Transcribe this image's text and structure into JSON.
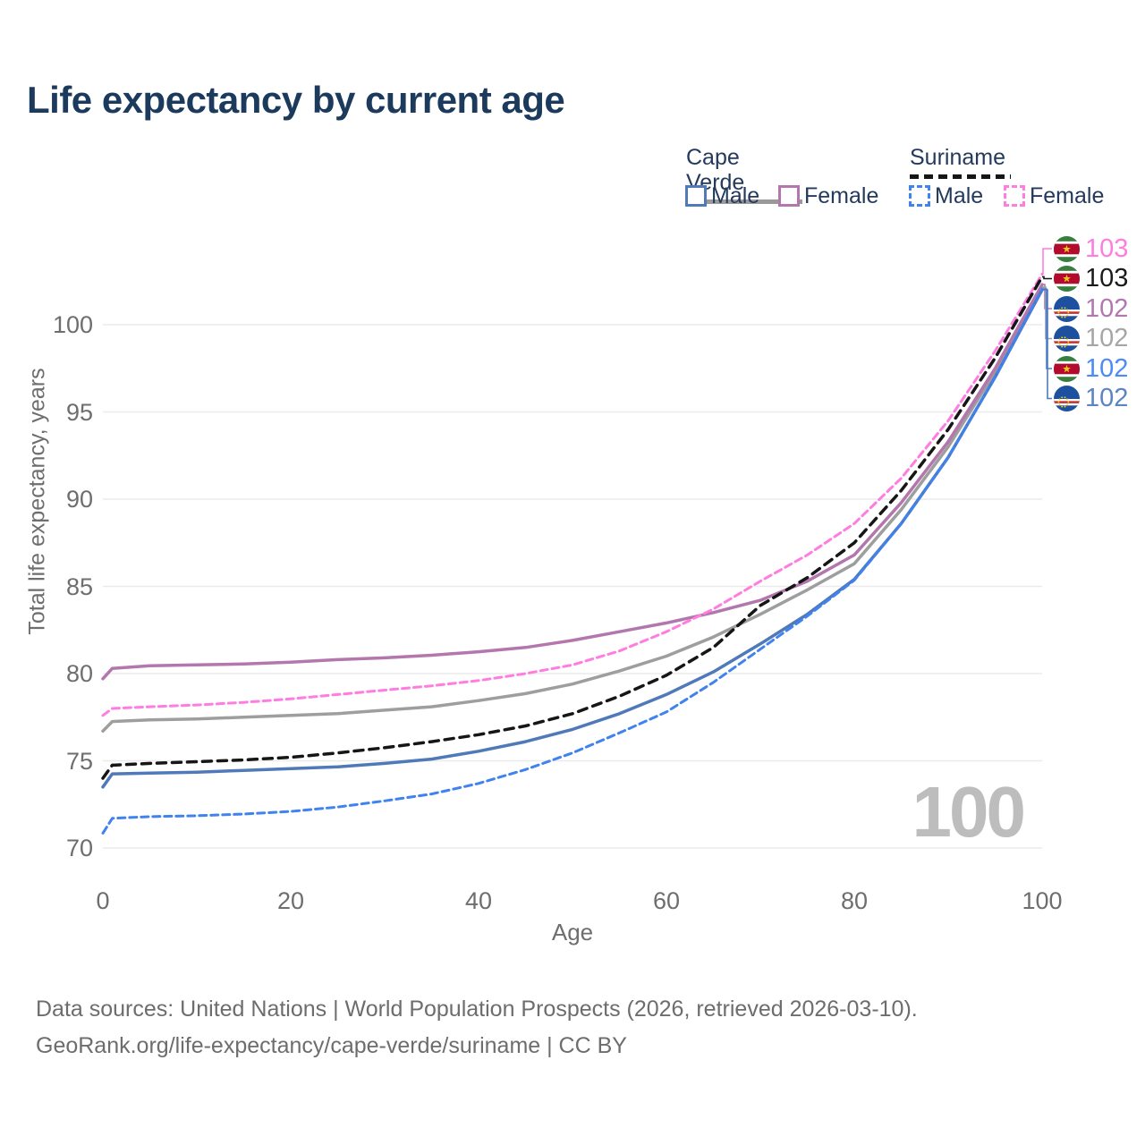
{
  "title": "Life expectancy by current age",
  "legend": {
    "groups": [
      {
        "country": "Cape Verde",
        "line_style": "solid",
        "underline_color": "#9a9a9a",
        "items": [
          {
            "label": "Male",
            "color": "#4f79b8",
            "dashed": false
          },
          {
            "label": "Female",
            "color": "#b377ae",
            "dashed": false
          }
        ]
      },
      {
        "country": "Suriname",
        "line_style": "dashed",
        "underline_color": "#161616",
        "items": [
          {
            "label": "Male",
            "color": "#3f82f0",
            "dashed": true
          },
          {
            "label": "Female",
            "color": "#ff7ce0",
            "dashed": true
          }
        ]
      }
    ]
  },
  "axes": {
    "x": {
      "title": "Age",
      "ticks": [
        0,
        20,
        40,
        60,
        80,
        100
      ],
      "range": [
        0,
        100
      ]
    },
    "y": {
      "title": "Total life expectancy, years",
      "ticks": [
        70,
        75,
        80,
        85,
        90,
        95,
        100
      ],
      "range": [
        70,
        100
      ]
    }
  },
  "watermark": "100",
  "end_labels": [
    {
      "value": "103",
      "flag": "suriname",
      "color": "#ff7ce0",
      "series": "suriname_female"
    },
    {
      "value": "103",
      "flag": "suriname",
      "color": "#1a1a1a",
      "series": "suriname_total"
    },
    {
      "value": "102",
      "flag": "cape-verde",
      "color": "#b377ae",
      "series": "cape_verde_female"
    },
    {
      "value": "102",
      "flag": "cape-verde",
      "color": "#a6a6a6",
      "series": "cape_verde_total"
    },
    {
      "value": "102",
      "flag": "suriname",
      "color": "#4d8af5",
      "series": "suriname_male"
    },
    {
      "value": "102",
      "flag": "cape-verde",
      "color": "#5b84c4",
      "series": "cape_verde_male"
    }
  ],
  "footer": {
    "line1": "Data sources: United Nations | World Population Prospects (2026, retrieved 2026-03-10).",
    "line2": "GeoRank.org/life-expectancy/cape-verde/suriname | CC BY"
  },
  "chart_data": {
    "type": "line",
    "title": "Life expectancy by current age",
    "xlabel": "Age",
    "ylabel": "Total life expectancy, years",
    "xlim": [
      0,
      100
    ],
    "ylim": [
      70,
      103
    ],
    "grid": "horizontal",
    "legend_position": "top-right",
    "x": [
      0,
      1,
      5,
      10,
      15,
      20,
      25,
      30,
      35,
      40,
      45,
      50,
      55,
      60,
      65,
      70,
      75,
      80,
      85,
      90,
      95,
      100
    ],
    "series": [
      {
        "id": "cape_verde_total",
        "name": "Cape Verde (both sexes)",
        "country": "Cape Verde",
        "sex": "both",
        "color": "#9e9e9e",
        "dash": null,
        "width": 3.5,
        "values": [
          76.7,
          77.25,
          77.35,
          77.4,
          77.5,
          77.6,
          77.7,
          77.9,
          78.1,
          78.45,
          78.85,
          79.4,
          80.15,
          81.0,
          82.1,
          83.4,
          84.8,
          86.3,
          89.4,
          93.0,
          97.3,
          102.15
        ]
      },
      {
        "id": "cape_verde_female",
        "name": "Cape Verde Female",
        "country": "Cape Verde",
        "sex": "female",
        "color": "#b377ae",
        "dash": null,
        "width": 3.5,
        "values": [
          79.7,
          80.3,
          80.45,
          80.5,
          80.55,
          80.65,
          80.8,
          80.9,
          81.05,
          81.25,
          81.5,
          81.9,
          82.4,
          82.9,
          83.5,
          84.2,
          85.3,
          86.8,
          89.8,
          93.3,
          97.5,
          102.3
        ]
      },
      {
        "id": "suriname_female",
        "name": "Suriname Female",
        "country": "Suriname",
        "sex": "female",
        "color": "#ff7ce0",
        "dash": "8 5",
        "width": 3,
        "values": [
          77.6,
          78.0,
          78.1,
          78.2,
          78.35,
          78.55,
          78.8,
          79.05,
          79.3,
          79.6,
          80.0,
          80.5,
          81.3,
          82.4,
          83.7,
          85.3,
          86.8,
          88.6,
          91.2,
          94.5,
          98.5,
          102.9
        ]
      },
      {
        "id": "suriname_total",
        "name": "Suriname (both sexes)",
        "country": "Suriname",
        "sex": "both",
        "color": "#161616",
        "dash": "10 7",
        "width": 3.5,
        "values": [
          74.0,
          74.75,
          74.85,
          74.95,
          75.05,
          75.2,
          75.45,
          75.75,
          76.1,
          76.5,
          77.0,
          77.7,
          78.7,
          79.9,
          81.5,
          83.9,
          85.5,
          87.5,
          90.5,
          94.0,
          98.1,
          102.75
        ]
      },
      {
        "id": "cape_verde_male",
        "name": "Cape Verde Male",
        "country": "Cape Verde",
        "sex": "male",
        "color": "#4f79b8",
        "dash": null,
        "width": 3.5,
        "values": [
          73.5,
          74.25,
          74.3,
          74.35,
          74.45,
          74.55,
          74.65,
          74.85,
          75.1,
          75.55,
          76.1,
          76.8,
          77.7,
          78.8,
          80.1,
          81.7,
          83.4,
          85.4,
          88.6,
          92.4,
          97.0,
          102.0
        ]
      },
      {
        "id": "suriname_male",
        "name": "Suriname Male",
        "country": "Suriname",
        "sex": "male",
        "color": "#3f82f0",
        "dash": "8 5",
        "width": 3,
        "values": [
          70.85,
          71.7,
          71.8,
          71.85,
          71.95,
          72.1,
          72.35,
          72.7,
          73.1,
          73.7,
          74.5,
          75.45,
          76.6,
          77.8,
          79.5,
          81.4,
          83.3,
          85.35,
          88.6,
          92.4,
          97.0,
          102.05
        ]
      }
    ]
  }
}
